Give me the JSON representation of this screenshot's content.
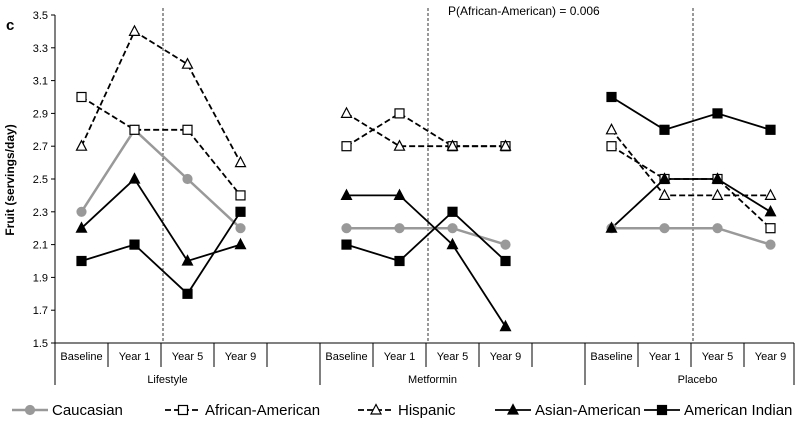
{
  "chart_data": {
    "type": "line",
    "panel_label": "c",
    "ylabel": "Fruit (servings/day)",
    "ylim": [
      1.5,
      3.5
    ],
    "yticks": [
      "1.5",
      "1.7",
      "1.9",
      "2.1",
      "2.3",
      "2.5",
      "2.7",
      "2.9",
      "3.1",
      "3.3",
      "3.5"
    ],
    "annotation": "P(African-American) = 0.006",
    "groups": [
      {
        "name": "Lifestyle",
        "categories": [
          "Baseline",
          "Year 1",
          "Year 5",
          "Year 9"
        ]
      },
      {
        "name": "Metformin",
        "categories": [
          "Baseline",
          "Year 1",
          "Year 5",
          "Year 9"
        ]
      },
      {
        "name": "Placebo",
        "categories": [
          "Baseline",
          "Year 1",
          "Year 5",
          "Year 9"
        ]
      }
    ],
    "series": [
      {
        "name": "Caucasian",
        "color": "#999999",
        "marker": "circle",
        "filled": true,
        "dash": false,
        "values": [
          [
            2.3,
            2.8,
            2.5,
            2.2
          ],
          [
            2.2,
            2.2,
            2.2,
            2.1
          ],
          [
            2.2,
            2.2,
            2.2,
            2.1
          ]
        ]
      },
      {
        "name": "African-American",
        "color": "#000000",
        "marker": "square",
        "filled": false,
        "dash": true,
        "values": [
          [
            3.0,
            2.8,
            2.8,
            2.4
          ],
          [
            2.7,
            2.9,
            2.7,
            2.7
          ],
          [
            2.7,
            2.5,
            2.5,
            2.2
          ]
        ]
      },
      {
        "name": "Hispanic",
        "color": "#000000",
        "marker": "triangle",
        "filled": false,
        "dash": true,
        "values": [
          [
            2.7,
            3.4,
            3.2,
            2.6
          ],
          [
            2.9,
            2.7,
            2.7,
            2.7
          ],
          [
            2.8,
            2.4,
            2.4,
            2.4
          ]
        ]
      },
      {
        "name": "Asian-American",
        "color": "#000000",
        "marker": "triangle",
        "filled": true,
        "dash": false,
        "values": [
          [
            2.2,
            2.5,
            2.0,
            2.1
          ],
          [
            2.4,
            2.4,
            2.1,
            1.6
          ],
          [
            2.2,
            2.5,
            2.5,
            2.3
          ]
        ]
      },
      {
        "name": "American Indian",
        "color": "#000000",
        "marker": "square",
        "filled": true,
        "dash": false,
        "values": [
          [
            2.0,
            2.1,
            1.8,
            2.3
          ],
          [
            2.1,
            2.0,
            2.3,
            2.0
          ],
          [
            3.0,
            2.8,
            2.9,
            2.8
          ]
        ]
      }
    ],
    "grid": false,
    "legend": "bottom"
  }
}
